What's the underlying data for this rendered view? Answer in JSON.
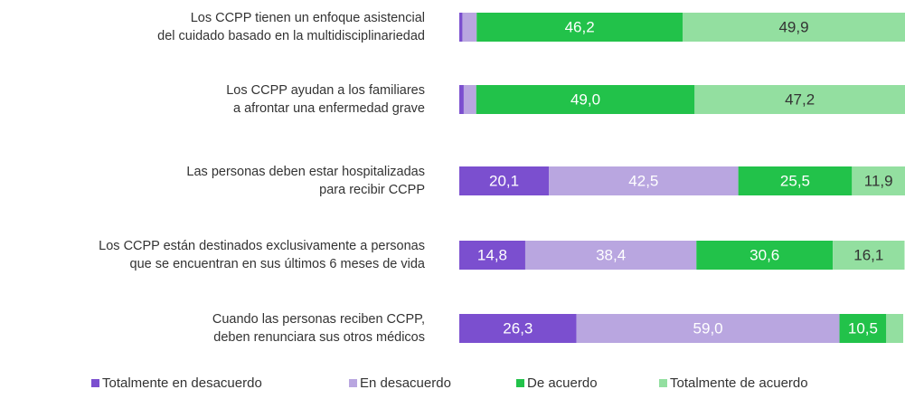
{
  "chart_data": {
    "type": "stacked-barh",
    "categories": [
      [
        "Los CCPP tienen un enfoque asistencial",
        "del cuidado basado en la multidisciplinariedad"
      ],
      [
        "Los CCPP ayudan a los familiares",
        "a afrontar una enfermedad grave"
      ],
      [
        "Las personas deben estar hospitalizadas",
        "para recibir CCPP"
      ],
      [
        "Los CCPP están destinados exclusivamente a personas",
        "que se encuentran en sus últimos 6 meses de vida"
      ],
      [
        "Cuando las personas reciben CCPP,",
        "deben renunciara sus otros médicos"
      ]
    ],
    "xlim": [
      0,
      100
    ],
    "series": [
      {
        "name": "Totalmente en desacuerdo",
        "color": "#7b4fcf",
        "text_color": "#ffffff",
        "values": [
          0.7,
          1.0,
          20.1,
          14.8,
          26.3
        ],
        "value_labels": [
          null,
          null,
          "20,1",
          "14,8",
          "26,3"
        ]
      },
      {
        "name": "En desacuerdo",
        "color": "#b9a6e0",
        "text_color": "#ffffff",
        "values": [
          3.2,
          2.8,
          42.5,
          38.4,
          59.0
        ],
        "value_labels": [
          null,
          null,
          "42,5",
          "38,4",
          "59,0"
        ]
      },
      {
        "name": "De acuerdo",
        "color": "#22c24a",
        "text_color": "#ffffff",
        "values": [
          46.2,
          49.0,
          25.5,
          30.6,
          10.5
        ],
        "value_labels": [
          "46,2",
          "49,0",
          "25,5",
          "30,6",
          "10,5"
        ]
      },
      {
        "name": "Totalmente de acuerdo",
        "color": "#93dfa0",
        "text_color": "#333333",
        "values": [
          49.9,
          47.2,
          11.9,
          16.1,
          3.8
        ],
        "value_labels": [
          "49,9",
          "47,2",
          "11,9",
          "16,1",
          null
        ]
      }
    ]
  }
}
